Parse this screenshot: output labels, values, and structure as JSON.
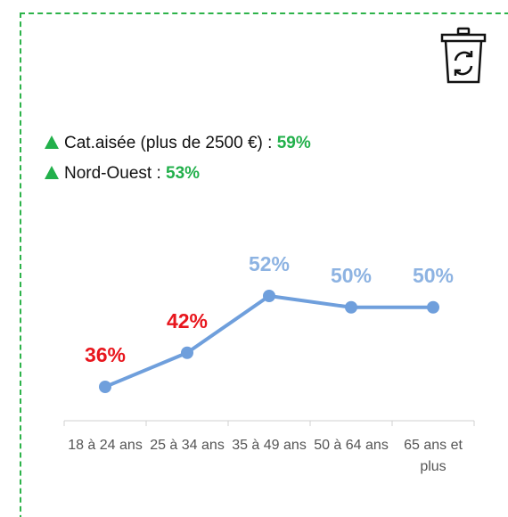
{
  "highlights": [
    {
      "label": "Cat.aisée (plus de 2500 €) :",
      "value": "59%"
    },
    {
      "label": "Nord-Ouest :",
      "value": "53%"
    }
  ],
  "chart_data": {
    "type": "line",
    "categories": [
      "18 à 24 ans",
      "25 à 34 ans",
      "35 à 49 ans",
      "50 à 64 ans",
      "65 ans et plus"
    ],
    "values": [
      36,
      42,
      52,
      50,
      50
    ],
    "value_labels": [
      "36%",
      "42%",
      "52%",
      "50%",
      "50%"
    ],
    "label_colors": [
      "#e8161d",
      "#e8161d",
      "#8db3e2",
      "#8db3e2",
      "#8db3e2"
    ],
    "color": "#6f9fdc"
  }
}
